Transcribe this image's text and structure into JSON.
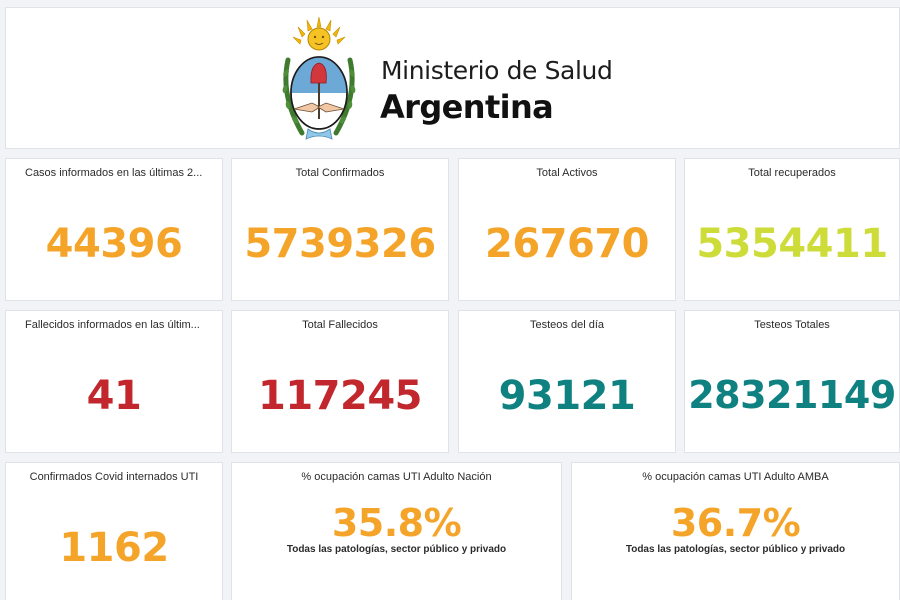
{
  "header": {
    "ministry": "Ministerio de Salud",
    "country": "Argentina",
    "logo_icon": "argentina-coat-of-arms-icon"
  },
  "colors": {
    "orange": "#f5a42a",
    "red": "#c1272d",
    "teal": "#0f8180",
    "lime": "#cddc39"
  },
  "cards": [
    {
      "title": "Casos informados en las últimas 2...",
      "value": "44396",
      "color": "orange"
    },
    {
      "title": "Total Confirmados",
      "value": "5739326",
      "color": "orange"
    },
    {
      "title": "Total Activos",
      "value": "267670",
      "color": "orange"
    },
    {
      "title": "Total recuperados",
      "value": "5354411",
      "color": "lime"
    },
    {
      "title": "Fallecidos informados en las últim...",
      "value": "41",
      "color": "red"
    },
    {
      "title": "Total Fallecidos",
      "value": "117245",
      "color": "red"
    },
    {
      "title": "Testeos del día",
      "value": "93121",
      "color": "teal"
    },
    {
      "title": "Testeos Totales",
      "value": "28321149",
      "color": "teal"
    },
    {
      "title": "Confirmados Covid internados UTI",
      "value": "1162",
      "color": "orange"
    },
    {
      "title": "% ocupación camas UTI Adulto Nación",
      "value": "35.8%",
      "subtitle": "Todas las patologías, sector público y privado",
      "color": "orange"
    },
    {
      "title": "% ocupación camas UTI Adulto AMBA",
      "value": "36.7%",
      "subtitle": "Todas las patologías, sector público y privado",
      "color": "orange"
    }
  ]
}
